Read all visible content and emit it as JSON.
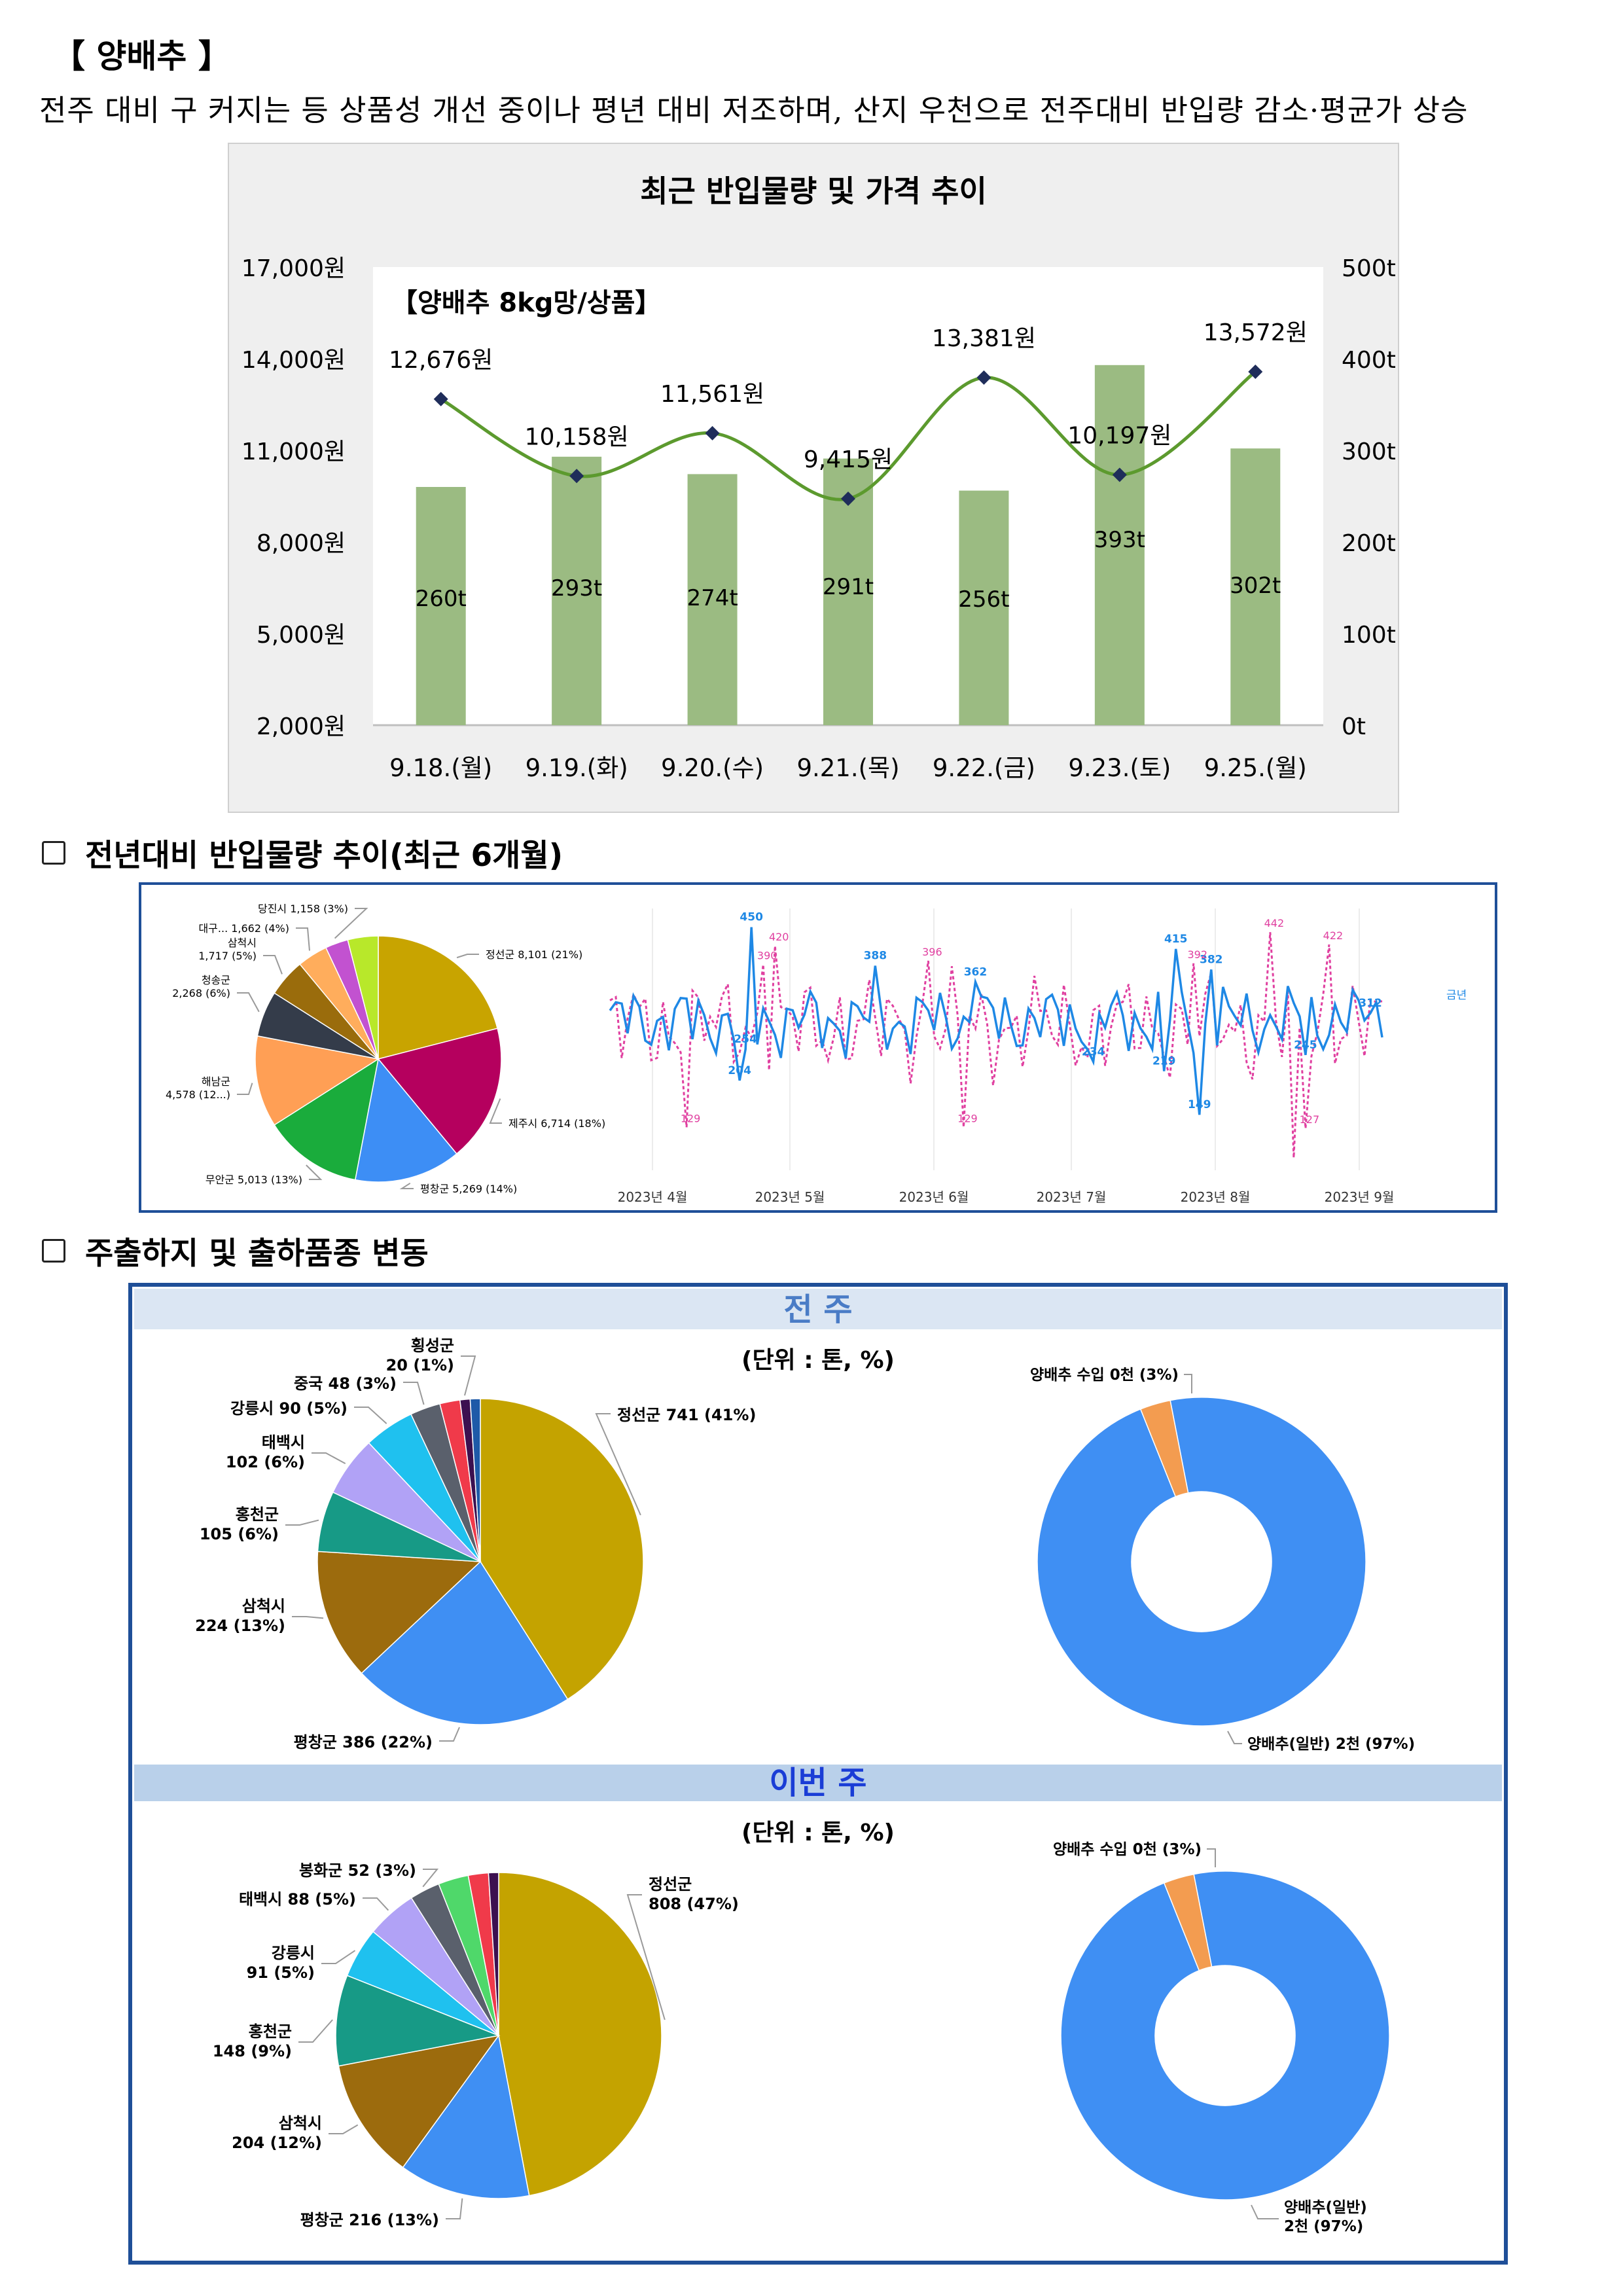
{
  "header": {
    "title": "【 양배추 】",
    "summary": "전주 대비 구 커지는 등 상품성 개선 중이나 평년 대비 저조하며, 산지 우천으로 전주대비 반입량 감소·평균가 상승"
  },
  "price_chart": {
    "title": "최근 반입물량 및 가격 추이",
    "inner_label": "【양배추 8kg망/상품】",
    "categories": [
      "9.18.(월)",
      "9.19.(화)",
      "9.20.(수)",
      "9.21.(목)",
      "9.22.(금)",
      "9.23.(토)",
      "9.25.(월)"
    ],
    "price_values": [
      12676,
      10158,
      11561,
      9415,
      13381,
      10197,
      13572
    ],
    "price_labels": [
      "12,676원",
      "10,158원",
      "11,561원",
      "9,415원",
      "13,381원",
      "10,197원",
      "13,572원"
    ],
    "volume_values": [
      260,
      293,
      274,
      291,
      256,
      393,
      302
    ],
    "volume_labels": [
      "260t",
      "293t",
      "274t",
      "291t",
      "256t",
      "393t",
      "302t"
    ],
    "left_ticks": [
      "17,000원",
      "14,000원",
      "11,000원",
      "8,000원",
      "5,000원",
      "2,000원"
    ],
    "right_ticks": [
      "500t",
      "400t",
      "300t",
      "200t",
      "100t",
      "0t"
    ],
    "colors": {
      "bar": "#9bbb82",
      "line": "#5c9a2e",
      "marker": "#1f2d5a"
    }
  },
  "section_year": {
    "heading": "전년대비 반입물량 추이(최근 6개월)",
    "pie": [
      {
        "label": "정선군 8,101 (21%)",
        "pct": 21,
        "color": "#c8a400"
      },
      {
        "label": "제주시 6,714 (18%)",
        "pct": 18,
        "color": "#b5005e"
      },
      {
        "label": "평창군 5,269 (14%)",
        "pct": 14,
        "color": "#3d8ef5"
      },
      {
        "label": "무안군 5,013 (13%)",
        "pct": 13,
        "color": "#1aac3c"
      },
      {
        "label": "해남군 4,578 (12...)",
        "pct": 12,
        "color": "#ff9f55"
      },
      {
        "label": "청송군 2,268 (6%)",
        "pct": 6,
        "color": "#343c4a"
      },
      {
        "label": "삼척시 1,717 (5%)",
        "pct": 5,
        "color": "#9a6c0c"
      },
      {
        "label": "대구... 1,662 (4%)",
        "pct": 4,
        "color": "#ffad5c"
      },
      {
        "label": "당진시 1,158 (3%)",
        "pct": 3,
        "color": "#c252d0"
      },
      {
        "label": "",
        "pct": 4,
        "color": "#b8e82a"
      }
    ],
    "trend": {
      "months": [
        "2023년 4월",
        "2023년 5월",
        "2023년 6월",
        "2023년 7월",
        "2023년 8월",
        "2023년 9월"
      ],
      "legend": "금년",
      "this_year_labels": [
        "450",
        "388",
        "362",
        "415",
        "382",
        "312",
        "254",
        "204",
        "234",
        "219",
        "149",
        "245"
      ],
      "last_year_labels": [
        "420",
        "390",
        "396",
        "392",
        "442",
        "422",
        "129",
        "129",
        "127"
      ],
      "colors": {
        "this_year": "#1e88e5",
        "last_year": "#e040a0"
      }
    }
  },
  "section_ship": {
    "heading": "주출하지 및 출하품종 변동",
    "unit": "(단위 : 톤, %)",
    "last_week": {
      "band": "전 주",
      "origins": [
        {
          "label": "정선군 741 (41%)",
          "pct": 41,
          "color": "#c4a300"
        },
        {
          "label": "평창군 386 (22%)",
          "pct": 22,
          "color": "#3f8ff3"
        },
        {
          "label": "삼척시 224 (13%)",
          "pct": 13,
          "color": "#9c6b0d"
        },
        {
          "label": "홍천군 105 (6%)",
          "pct": 6,
          "color": "#179a86"
        },
        {
          "label": "태백시 102 (6%)",
          "pct": 6,
          "color": "#b1a2f6"
        },
        {
          "label": "강릉시 90 (5%)",
          "pct": 5,
          "color": "#1fc1ef"
        },
        {
          "label": "중국 48 (3%)",
          "pct": 3,
          "color": "#5a606c"
        },
        {
          "label": "",
          "pct": 2,
          "color": "#f03a4a"
        },
        {
          "label": "횡성군 20 (1%)",
          "pct": 1,
          "color": "#3c1050"
        },
        {
          "label": "",
          "pct": 1,
          "color": "#1e5aa8"
        }
      ],
      "varieties": [
        {
          "label": "양배추(일반) 2천 (97%)",
          "pct": 97,
          "color": "#3f8ff3"
        },
        {
          "label": "양배추 수입 0천 (3%)",
          "pct": 3,
          "color": "#f39c50"
        }
      ]
    },
    "this_week": {
      "band": "이번 주",
      "origins": [
        {
          "label": "정선군 808 (47%)",
          "pct": 47,
          "color": "#c4a300"
        },
        {
          "label": "평창군 216 (13%)",
          "pct": 13,
          "color": "#3f8ff3"
        },
        {
          "label": "삼척시 204 (12%)",
          "pct": 12,
          "color": "#9c6b0d"
        },
        {
          "label": "홍천군 148 (9%)",
          "pct": 9,
          "color": "#179a86"
        },
        {
          "label": "강릉시 91 (5%)",
          "pct": 5,
          "color": "#1fc1ef"
        },
        {
          "label": "태백시 88 (5%)",
          "pct": 5,
          "color": "#b1a2f6"
        },
        {
          "label": "봉화군 52 (3%)",
          "pct": 3,
          "color": "#5a606c"
        },
        {
          "label": "",
          "pct": 3,
          "color": "#4fd86a"
        },
        {
          "label": "",
          "pct": 2,
          "color": "#f03a4a"
        },
        {
          "label": "",
          "pct": 1,
          "color": "#3c1050"
        }
      ],
      "varieties": [
        {
          "label": "양배추(일반) 2천 (97%)",
          "pct": 97,
          "color": "#3f8ff3"
        },
        {
          "label": "양배추 수입 0천 (3%)",
          "pct": 3,
          "color": "#f39c50"
        }
      ]
    }
  }
}
